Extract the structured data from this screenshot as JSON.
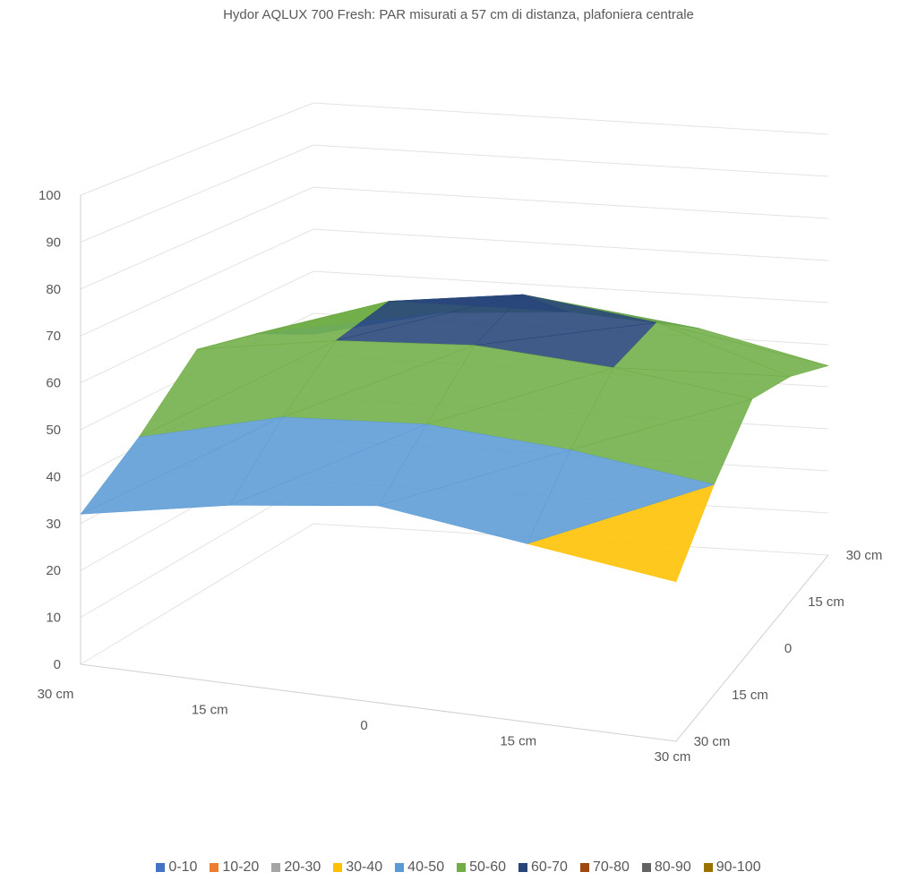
{
  "chart_data": {
    "type": "surface",
    "title": "Hydor AQLUX 700 Fresh: PAR misurati a 57 cm di distanza, plafoniera centrale",
    "x_ticks": [
      "30 cm",
      "15 cm",
      "0",
      "15 cm",
      "30 cm"
    ],
    "y_ticks": [
      "30 cm",
      "15 cm",
      "0",
      "15 cm",
      "30 cm"
    ],
    "z_ticks": [
      "0",
      "10",
      "20",
      "30",
      "40",
      "50",
      "60",
      "70",
      "80",
      "90",
      "100"
    ],
    "zlim": [
      0,
      100
    ],
    "grid": true,
    "legend_position": "bottom",
    "values_front_to_back": [
      [
        32,
        38,
        42,
        38,
        34
      ],
      [
        42,
        50,
        52,
        50,
        46
      ],
      [
        55,
        60,
        62,
        60,
        56
      ],
      [
        52,
        62,
        66,
        62,
        52
      ],
      [
        45,
        52,
        54,
        52,
        45
      ]
    ],
    "bands": [
      {
        "label": "0-10",
        "color": "#4472C4"
      },
      {
        "label": "10-20",
        "color": "#ED7D31"
      },
      {
        "label": "20-30",
        "color": "#A5A5A5"
      },
      {
        "label": "30-40",
        "color": "#FFC000"
      },
      {
        "label": "40-50",
        "color": "#5B9BD5"
      },
      {
        "label": "50-60",
        "color": "#70AD47"
      },
      {
        "label": "60-70",
        "color": "#264478"
      },
      {
        "label": "70-80",
        "color": "#9E480E"
      },
      {
        "label": "80-90",
        "color": "#636363"
      },
      {
        "label": "90-100",
        "color": "#997300"
      }
    ]
  }
}
